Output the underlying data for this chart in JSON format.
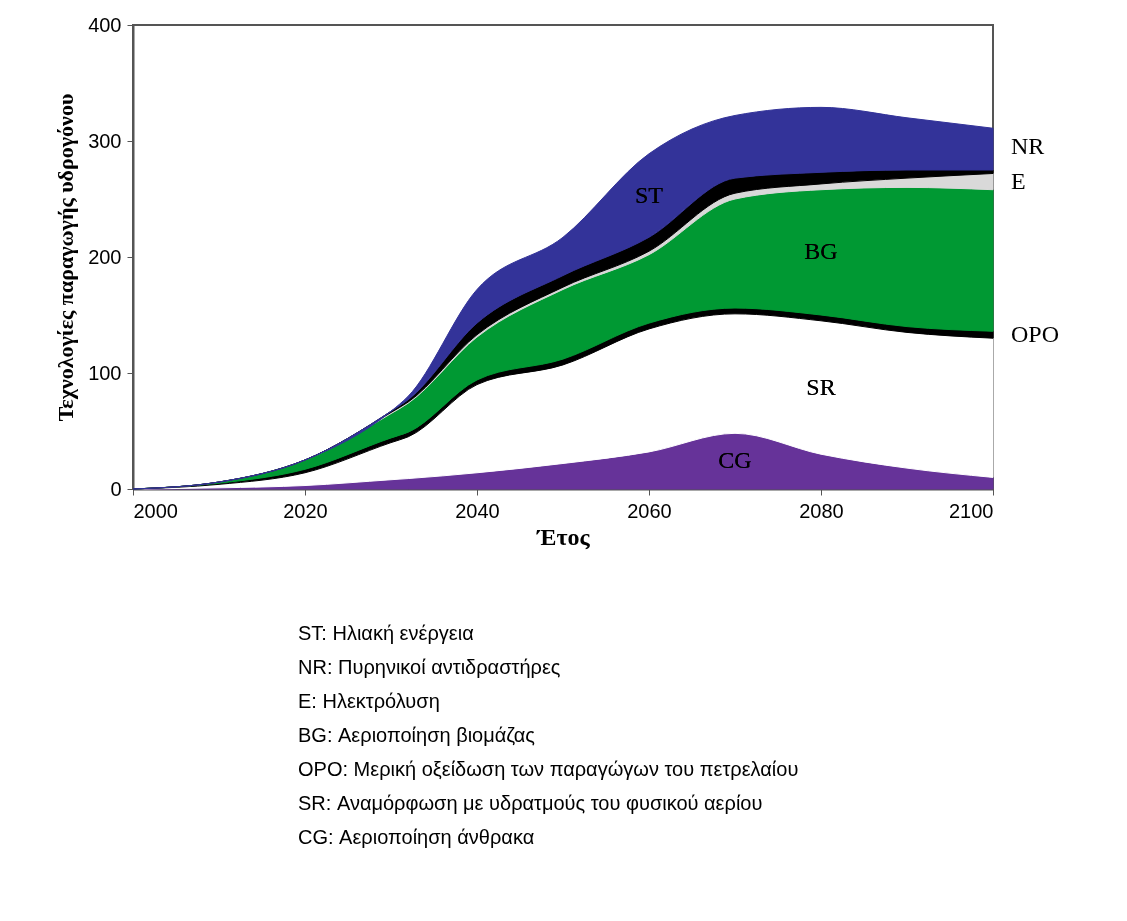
{
  "chart_data": {
    "type": "area",
    "stacked": true,
    "xlabel": "Έτος",
    "ylabel": "Τεχνολογίες παραγωγής υδρογόνου",
    "x": [
      2000,
      2010,
      2020,
      2030,
      2032,
      2040,
      2050,
      2060,
      2070,
      2080,
      2090,
      2100
    ],
    "xlim": [
      2000,
      2100
    ],
    "xticks": [
      2000,
      2020,
      2040,
      2060,
      2080,
      2100
    ],
    "ylim": [
      0,
      400
    ],
    "yticks": [
      0,
      100,
      200,
      300,
      400
    ],
    "series": [
      {
        "name": "CG",
        "color": "#663399",
        "values": [
          0,
          1,
          3,
          8,
          9,
          14,
          22,
          32,
          48,
          30,
          18,
          10
        ]
      },
      {
        "name": "SR",
        "color": "#ffffff",
        "values": [
          0,
          3,
          11,
          32,
          36,
          76,
          85,
          106,
          103,
          115,
          117,
          120
        ]
      },
      {
        "name": "OPO",
        "color": "#000000",
        "values": [
          0,
          1,
          3,
          4,
          4,
          4,
          5,
          5,
          5,
          5,
          5,
          6
        ]
      },
      {
        "name": "BG",
        "color": "#009933",
        "values": [
          0,
          1,
          8,
          21,
          25,
          37,
          60,
          59,
          94,
          108,
          120,
          122
        ]
      },
      {
        "name": "E",
        "color": "#d9d9d9",
        "values": [
          0,
          0,
          0,
          1,
          1,
          2,
          2,
          3,
          5,
          5,
          8,
          14
        ]
      },
      {
        "name": "NR",
        "color": "#000000",
        "values": [
          0,
          0,
          0,
          1,
          2,
          10,
          10,
          12,
          13,
          10,
          7,
          3
        ]
      },
      {
        "name": "ST",
        "color": "#333399",
        "values": [
          0,
          0,
          0,
          0,
          3,
          29,
          33,
          72,
          54,
          56,
          45,
          36
        ]
      }
    ],
    "annotations": [
      "ST: Ηλιακή ενέργεια",
      "NR: Πυρηνικοί αντιδραστήρες",
      "E: Ηλεκτρόλυση",
      "BG: Αεριοποίηση βιομάζας",
      "OPO: Μερική οξείδωση των παραγώγων του πετρελαίου",
      "SR: Αναμόρφωση με υδρατμούς του φυσικού αερίου",
      "CG: Αεριοποίηση άνθρακα"
    ]
  }
}
